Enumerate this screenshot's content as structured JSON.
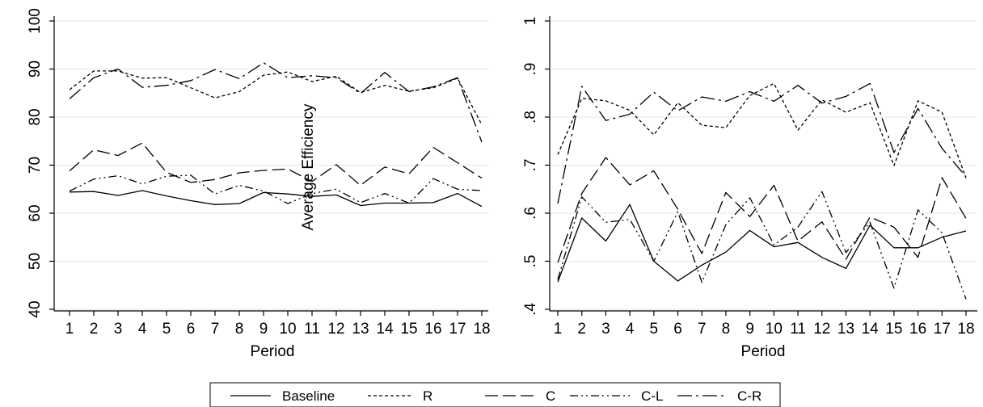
{
  "chart_data": [
    {
      "type": "line",
      "xlabel": "Period",
      "ylabel": "Average Efficiency",
      "x": [
        1,
        2,
        3,
        4,
        5,
        6,
        7,
        8,
        9,
        10,
        11,
        12,
        13,
        14,
        15,
        16,
        17,
        18
      ],
      "ylim": [
        40,
        100
      ],
      "yticks": [
        40,
        50,
        60,
        70,
        80,
        90,
        100
      ],
      "ytick_labels": [
        "40",
        "50",
        "60",
        "70",
        "80",
        "90",
        "100"
      ],
      "grid": true,
      "series": [
        {
          "name": "Baseline",
          "values": [
            64.4,
            64.5,
            63.7,
            64.7,
            63.6,
            62.6,
            61.8,
            62.0,
            64.3,
            64.0,
            63.5,
            63.8,
            61.6,
            62.1,
            62.1,
            62.2,
            64.1,
            61.4
          ]
        },
        {
          "name": "R",
          "values": [
            85.7,
            89.6,
            89.6,
            88.1,
            88.2,
            86.1,
            84.0,
            85.3,
            88.7,
            89.4,
            87.4,
            88.5,
            85.1,
            86.6,
            85.4,
            86.1,
            88.1,
            78.4
          ]
        },
        {
          "name": "C",
          "values": [
            68.8,
            73.2,
            72.0,
            74.6,
            68.5,
            66.4,
            67.0,
            68.4,
            68.9,
            69.2,
            66.6,
            70.1,
            65.8,
            69.6,
            68.2,
            73.7,
            70.5,
            67.3
          ]
        },
        {
          "name": "C-L",
          "values": [
            64.6,
            67.1,
            67.8,
            66.1,
            67.7,
            67.9,
            64.0,
            65.8,
            64.6,
            62.0,
            64.1,
            65.0,
            62.2,
            64.1,
            62.1,
            67.2,
            65.0,
            64.7
          ]
        },
        {
          "name": "C-R",
          "values": [
            83.8,
            88.2,
            90.0,
            86.2,
            86.6,
            87.6,
            89.9,
            88.0,
            91.3,
            88.2,
            88.6,
            88.2,
            84.9,
            89.3,
            85.3,
            86.3,
            88.2,
            74.8
          ]
        }
      ]
    },
    {
      "type": "line",
      "xlabel": "Period",
      "ylabel": "",
      "x": [
        1,
        2,
        3,
        4,
        5,
        6,
        7,
        8,
        9,
        10,
        11,
        12,
        13,
        14,
        15,
        16,
        17,
        18
      ],
      "ylim": [
        0.4,
        1.0
      ],
      "yticks": [
        0.4,
        0.5,
        0.6,
        0.7,
        0.8,
        0.9,
        1.0
      ],
      "ytick_labels": [
        ".4",
        ".5",
        ".6",
        ".7",
        ".8",
        ".9",
        "1"
      ],
      "grid": true,
      "series": [
        {
          "name": "Baseline",
          "values": [
            0.457,
            0.59,
            0.542,
            0.618,
            0.5,
            0.459,
            0.492,
            0.519,
            0.564,
            0.53,
            0.539,
            0.508,
            0.485,
            0.575,
            0.528,
            0.528,
            0.55,
            0.563
          ]
        },
        {
          "name": "R",
          "values": [
            0.722,
            0.839,
            0.834,
            0.814,
            0.763,
            0.83,
            0.783,
            0.778,
            0.845,
            0.87,
            0.773,
            0.836,
            0.81,
            0.83,
            0.699,
            0.834,
            0.81,
            0.673
          ]
        },
        {
          "name": "C",
          "values": [
            0.497,
            0.641,
            0.716,
            0.659,
            0.688,
            0.608,
            0.516,
            0.643,
            0.593,
            0.658,
            0.542,
            0.582,
            0.504,
            0.592,
            0.571,
            0.508,
            0.674,
            0.589
          ]
        },
        {
          "name": "C-L",
          "values": [
            0.462,
            0.634,
            0.581,
            0.587,
            0.5,
            0.603,
            0.456,
            0.576,
            0.632,
            0.534,
            0.571,
            0.645,
            0.518,
            0.581,
            0.444,
            0.607,
            0.559,
            0.421
          ]
        },
        {
          "name": "C-R",
          "values": [
            0.62,
            0.864,
            0.793,
            0.806,
            0.852,
            0.813,
            0.842,
            0.833,
            0.853,
            0.833,
            0.866,
            0.829,
            0.843,
            0.87,
            0.726,
            0.818,
            0.735,
            0.676
          ]
        }
      ]
    }
  ],
  "legend": {
    "placement": "bottom",
    "items": [
      {
        "name": "Baseline",
        "dash": "solid"
      },
      {
        "name": "R",
        "dash": "short-dash"
      },
      {
        "name": "C",
        "dash": "long-dash"
      },
      {
        "name": "C-L",
        "dash": "dash-dot-dot"
      },
      {
        "name": "C-R",
        "dash": "long-dash-dot"
      }
    ]
  }
}
